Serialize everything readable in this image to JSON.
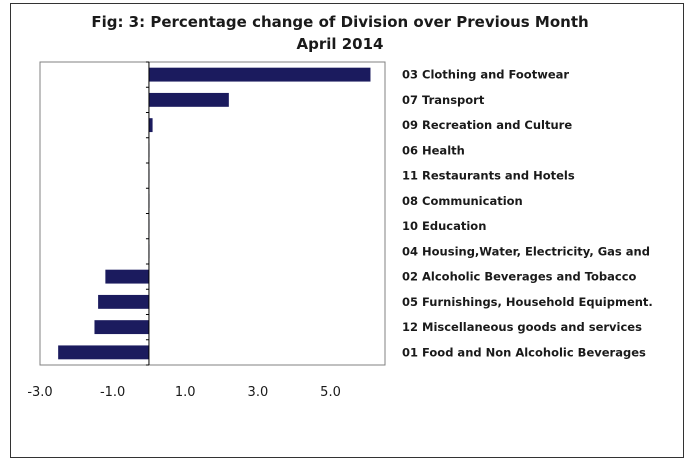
{
  "chart_data": {
    "type": "bar",
    "orientation": "horizontal",
    "title": "Fig: 3: Percentage change of Division over Previous Month",
    "subtitle": "April 2014",
    "categories": [
      "03 Clothing and Footwear",
      "07 Transport",
      "09 Recreation and Culture",
      "06 Health",
      "11 Restaurants and Hotels",
      "08 Communication",
      "10 Education",
      "04 Housing,Water, Electricity, Gas and",
      "02 Alcoholic Beverages and Tobacco",
      "05 Furnishings, Household Equipment.",
      "12 Miscellaneous goods and services",
      "01 Food and Non Alcoholic Beverages"
    ],
    "values": [
      6.1,
      2.2,
      0.1,
      0.0,
      0.0,
      0.0,
      0.0,
      0.0,
      -1.2,
      -1.4,
      -1.5,
      -2.5
    ],
    "xlim": [
      -3.0,
      6.5
    ],
    "xticks": [
      -3.0,
      -1.0,
      1.0,
      3.0,
      5.0
    ],
    "xtick_labels": [
      "-3.0",
      "-1.0",
      "1.0",
      "3.0",
      "5.0"
    ],
    "xlabel": "",
    "ylabel": "",
    "grid": false,
    "legend": "none",
    "bar_color": "#1b1b5e"
  }
}
